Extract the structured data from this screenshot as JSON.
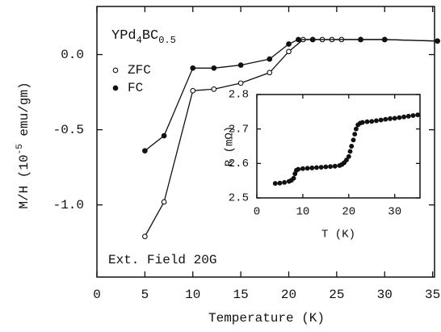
{
  "chart_data": [
    {
      "type": "line",
      "xlabel": "Temperature (K)",
      "ylabel_parts": [
        "M/H (10",
        "-5",
        " emu/gm)"
      ],
      "title_parts": [
        "YPd",
        "4",
        "BC",
        "0.5"
      ],
      "annotation": "Ext. Field 20G",
      "xlim": [
        0,
        35.2
      ],
      "xticks": [
        0,
        5,
        10,
        15,
        20,
        25,
        30,
        35
      ],
      "ylim": [
        -1.48,
        0.32
      ],
      "yticks": [
        {
          "value": -1.0,
          "label": "-1.0"
        },
        -0.5,
        {
          "value": 0.0,
          "label": "0.0"
        }
      ],
      "series": [
        {
          "name": "ZFC",
          "marker": "open",
          "color": "#111",
          "x": [
            5,
            7,
            10,
            12.2,
            15,
            18,
            20,
            21.5,
            22.5,
            23.5,
            24.5,
            25.5,
            27.5,
            30,
            35.5
          ],
          "y": [
            -1.21,
            -0.98,
            -0.24,
            -0.23,
            -0.19,
            -0.12,
            0.02,
            0.1,
            0.1,
            0.1,
            0.1,
            0.1,
            0.1,
            0.1,
            0.09
          ]
        },
        {
          "name": "FC",
          "marker": "filled",
          "color": "#111",
          "x": [
            5,
            7,
            10,
            12.2,
            15,
            18,
            20,
            21,
            22.5,
            27.5,
            30,
            35.5
          ],
          "y": [
            -0.64,
            -0.54,
            -0.09,
            -0.09,
            -0.07,
            -0.03,
            0.07,
            0.1,
            0.1,
            0.1,
            0.1,
            0.09
          ]
        }
      ]
    },
    {
      "type": "scatter",
      "xlabel": "T (K)",
      "ylabel": "R (mΩ)",
      "xlim": [
        0,
        35.5
      ],
      "xticks": [
        0,
        10,
        20,
        30
      ],
      "ylim": [
        2.5,
        2.8
      ],
      "yticks": [
        2.5,
        2.6,
        2.7,
        2.8
      ],
      "series": [
        {
          "name": null,
          "marker": "filled",
          "color": "#111",
          "x": [
            4,
            5,
            6,
            7,
            7.5,
            8,
            8.3,
            8.6,
            9,
            10,
            11,
            12,
            13,
            14,
            15,
            16,
            17,
            18,
            18.5,
            19,
            19.5,
            20,
            20.3,
            20.6,
            21,
            21.3,
            21.6,
            22,
            22.5,
            23,
            24,
            25,
            26,
            27,
            28,
            29,
            30,
            31,
            32,
            33,
            34,
            35
          ],
          "y": [
            2.542,
            2.543,
            2.545,
            2.548,
            2.551,
            2.557,
            2.57,
            2.58,
            2.583,
            2.585,
            2.586,
            2.587,
            2.588,
            2.589,
            2.59,
            2.591,
            2.592,
            2.594,
            2.597,
            2.602,
            2.61,
            2.62,
            2.635,
            2.65,
            2.668,
            2.685,
            2.7,
            2.712,
            2.717,
            2.719,
            2.721,
            2.722,
            2.724,
            2.726,
            2.728,
            2.73,
            2.731,
            2.733,
            2.735,
            2.737,
            2.739,
            2.741
          ]
        }
      ]
    }
  ]
}
